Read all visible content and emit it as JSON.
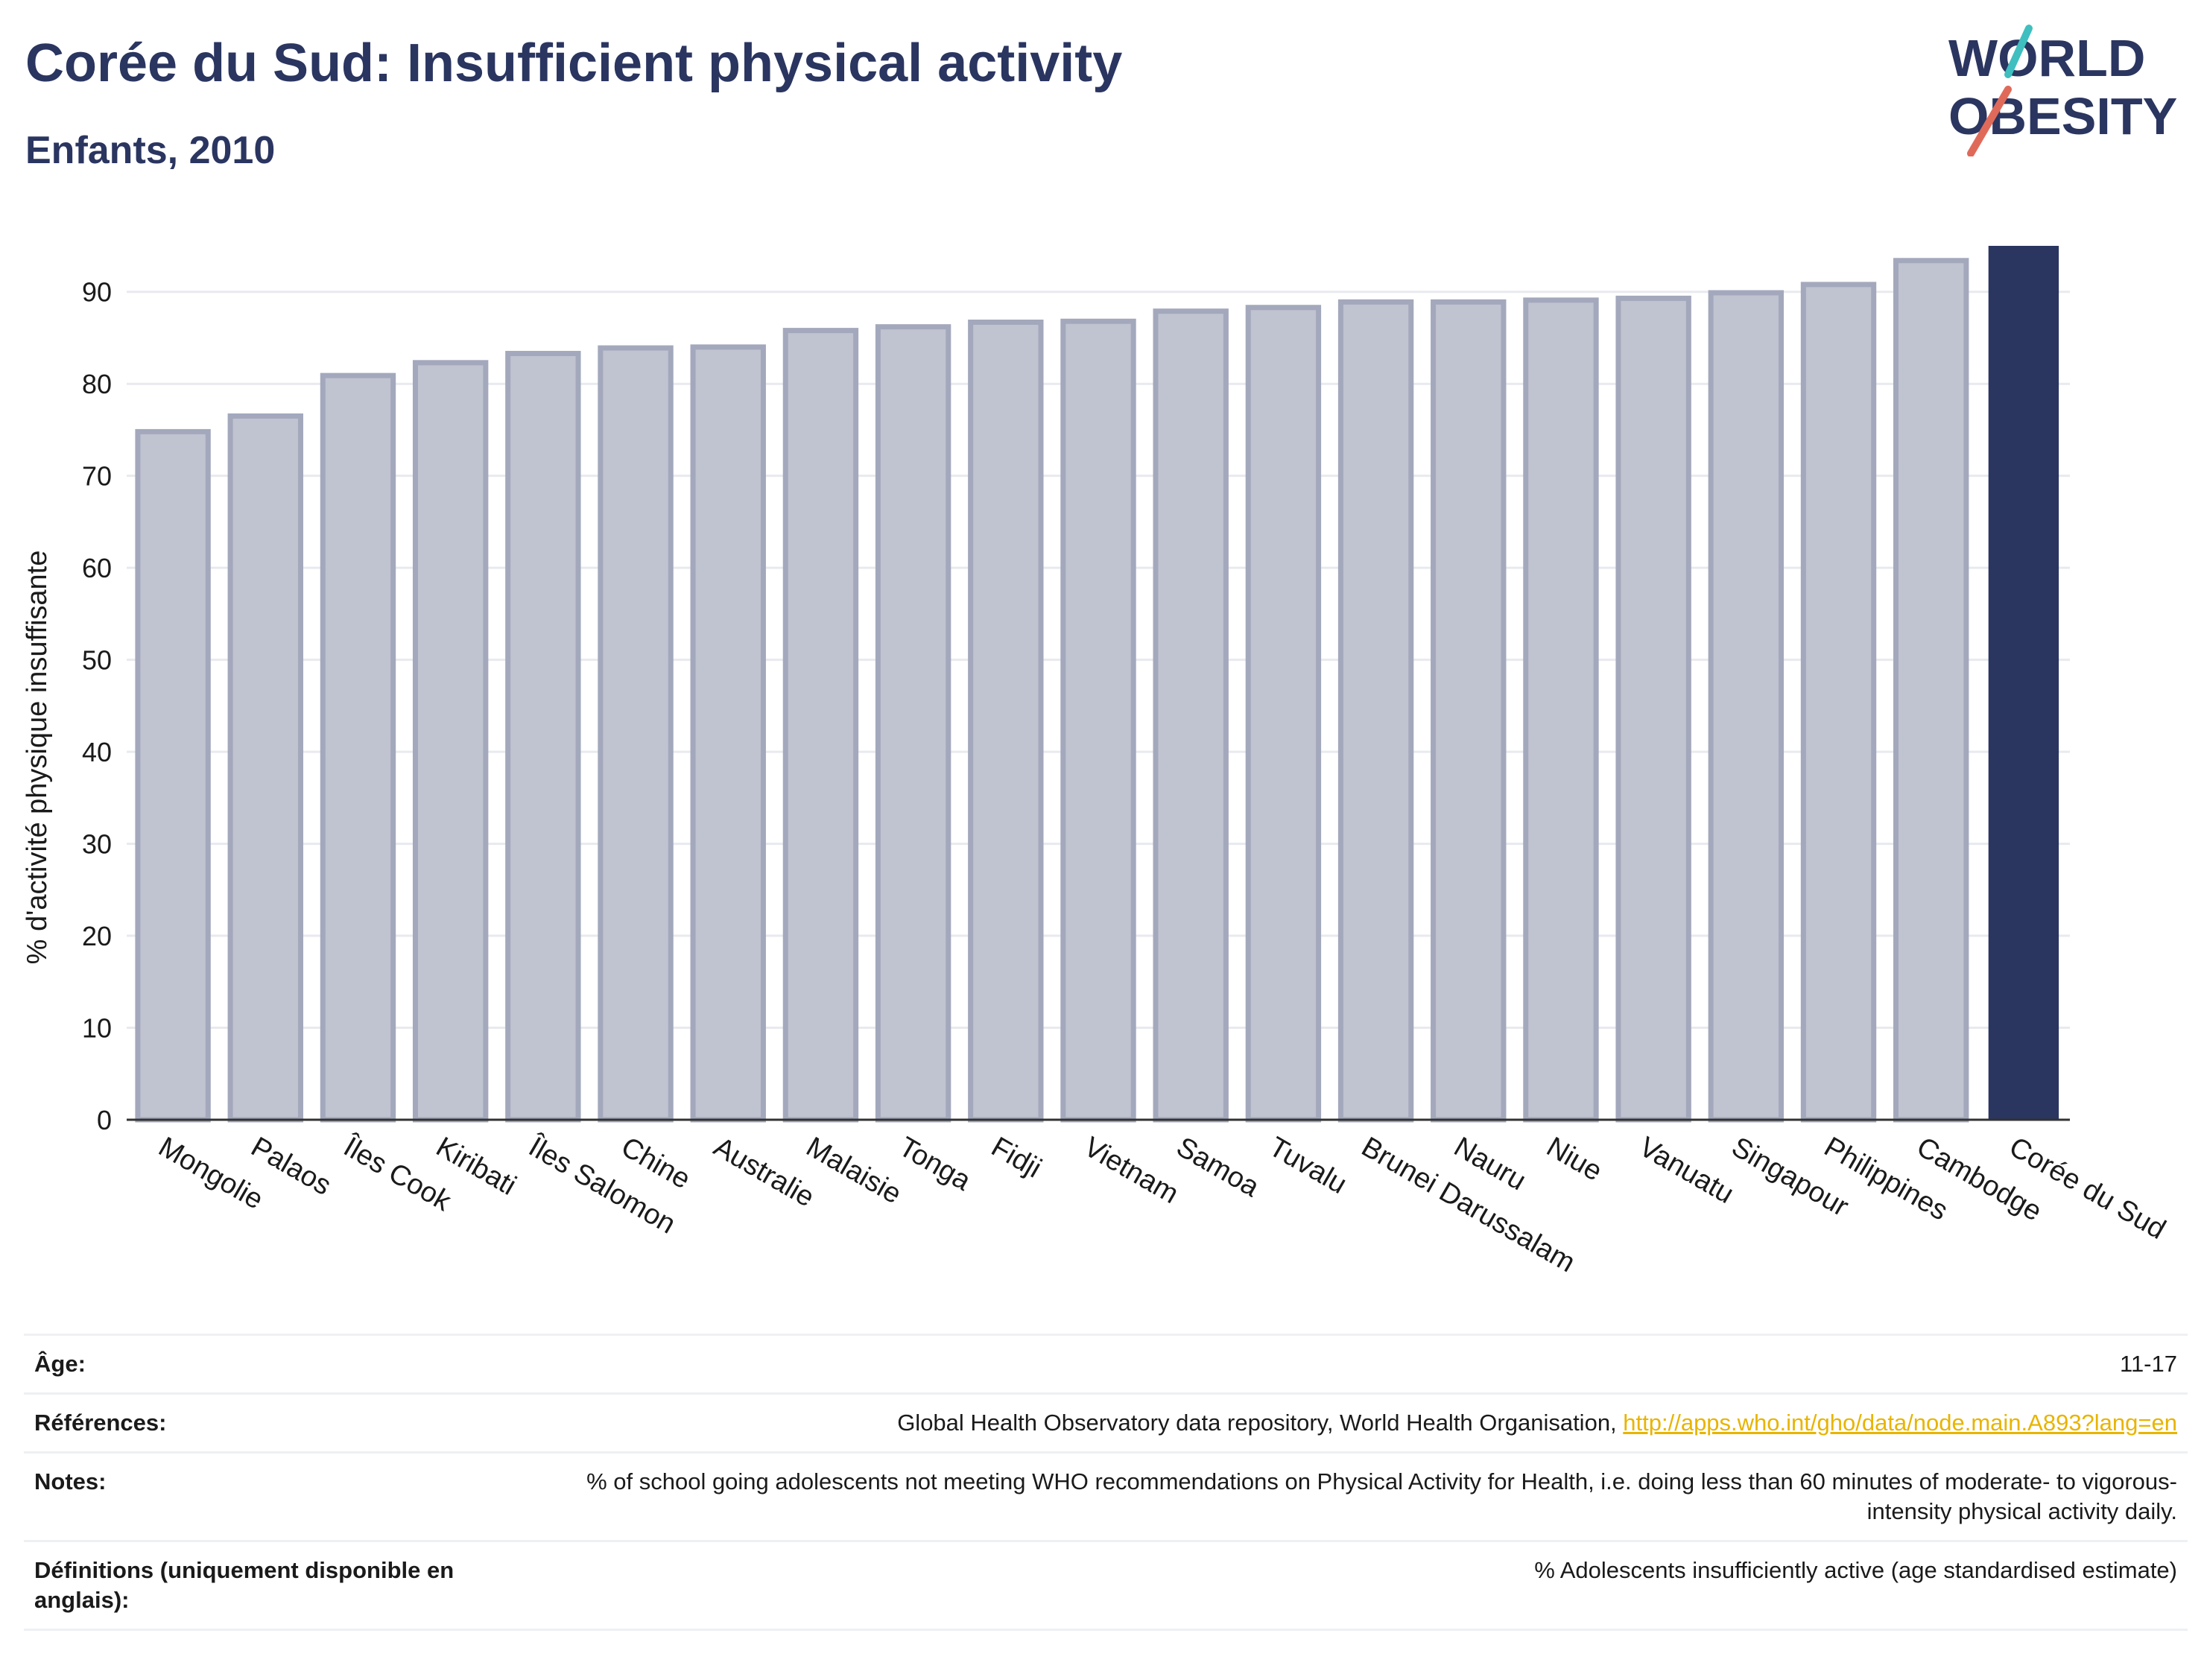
{
  "header": {
    "title": "Corée du Sud: Insufficient physical activity",
    "subtitle": "Enfants, 2010",
    "logo_line1": "WORLD",
    "logo_line2": "OBESITY"
  },
  "colors": {
    "bar_default": "#c0c3d0",
    "bar_border": "#a3a8bc",
    "bar_highlight": "#2a3560",
    "text": "#2a3560",
    "link": "#e8b400",
    "logo_slash_teal": "#3fbfbf",
    "logo_slash_coral": "#e06a5a"
  },
  "chart_data": {
    "type": "bar",
    "title": "Corée du Sud: Insufficient physical activity",
    "subtitle": "Enfants, 2010",
    "xlabel": "",
    "ylabel": "% d'activité physique insuffisante",
    "ylim": [
      0,
      95
    ],
    "yticks": [
      0,
      10,
      20,
      30,
      40,
      50,
      60,
      70,
      80,
      90
    ],
    "grid": true,
    "highlight": "Corée du Sud",
    "categories": [
      "Mongolie",
      "Palaos",
      "Îles Cook",
      "Kiribati",
      "Îles Salomon",
      "Chine",
      "Australie",
      "Malaisie",
      "Tonga",
      "Fidji",
      "Vietnam",
      "Samoa",
      "Tuvalu",
      "Brunei Darussalam",
      "Nauru",
      "Niue",
      "Vanuatu",
      "Singapour",
      "Philippines",
      "Cambodge",
      "Corée du Sud"
    ],
    "values": [
      74.8,
      76.5,
      80.9,
      82.3,
      83.3,
      83.9,
      84.0,
      85.8,
      86.2,
      86.7,
      86.8,
      87.9,
      88.3,
      88.9,
      88.9,
      89.1,
      89.3,
      89.9,
      90.8,
      93.4,
      95.0
    ]
  },
  "info": [
    {
      "label": "Âge:",
      "value": "11-17"
    },
    {
      "label": "Références:",
      "value": "Global Health Observatory data repository, World Health Organisation, ",
      "link": "http://apps.who.int/gho/data/node.main.A893?lang=en"
    },
    {
      "label": "Notes:",
      "value": "% of school going adolescents not meeting WHO recommendations on Physical Activity for Health, i.e. doing less than 60 minutes of moderate- to vigorous-intensity physical activity daily."
    },
    {
      "label": "Définitions (uniquement disponible en anglais):",
      "value": "% Adolescents insufficiently active (age standardised estimate)"
    }
  ]
}
